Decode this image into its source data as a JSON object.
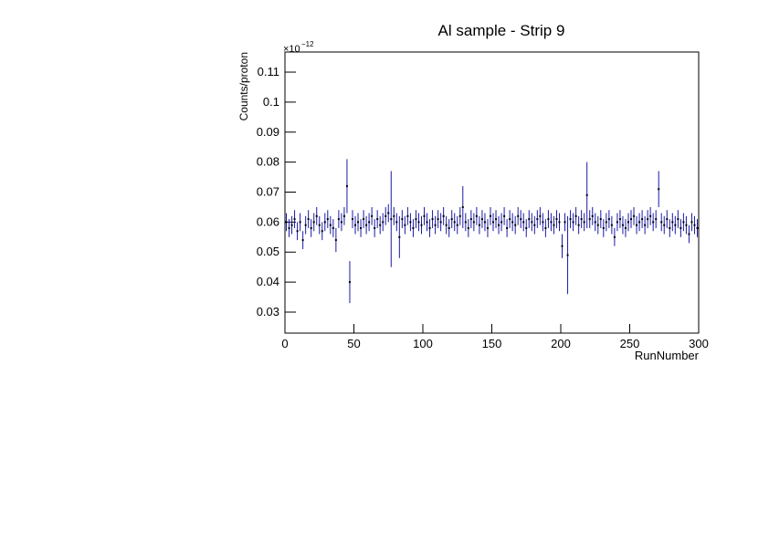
{
  "chart_data": {
    "type": "errorbar",
    "title": "Al sample - Strip 9",
    "x_label": "RunNumber",
    "y_label": "Counts/proton",
    "y_multiplier": "×10",
    "y_exponent": "−12",
    "xlim": [
      0,
      300
    ],
    "xticks": [
      0,
      50,
      100,
      150,
      200,
      250,
      300
    ],
    "ylim": [
      0.023,
      0.1167
    ],
    "yticks": [
      0.03,
      0.04,
      0.05,
      0.06,
      0.07,
      0.08,
      0.09,
      0.1,
      0.11
    ],
    "x": [
      1,
      3,
      5,
      7,
      9,
      11,
      13,
      15,
      17,
      19,
      21,
      23,
      25,
      27,
      29,
      31,
      33,
      35,
      37,
      39,
      41,
      43,
      45,
      47,
      49,
      51,
      53,
      55,
      57,
      59,
      61,
      63,
      65,
      67,
      69,
      71,
      73,
      75,
      77,
      79,
      81,
      83,
      85,
      87,
      89,
      91,
      93,
      95,
      97,
      99,
      101,
      103,
      105,
      107,
      109,
      111,
      113,
      115,
      117,
      119,
      121,
      123,
      125,
      127,
      129,
      131,
      133,
      135,
      137,
      139,
      141,
      143,
      145,
      147,
      149,
      151,
      153,
      155,
      157,
      159,
      161,
      163,
      165,
      167,
      169,
      171,
      173,
      175,
      177,
      179,
      181,
      183,
      185,
      187,
      189,
      191,
      193,
      195,
      197,
      199,
      201,
      203,
      205,
      207,
      209,
      211,
      213,
      215,
      217,
      219,
      221,
      223,
      225,
      227,
      229,
      231,
      233,
      235,
      237,
      239,
      241,
      243,
      245,
      247,
      249,
      251,
      253,
      255,
      257,
      259,
      261,
      263,
      265,
      267,
      269,
      271,
      273,
      275,
      277,
      279,
      281,
      283,
      285,
      287,
      289,
      291,
      293,
      295,
      297,
      299
    ],
    "series": [
      {
        "color": "#1a1aa6",
        "marker_color": "#000000",
        "values": [
          0.06,
          0.058,
          0.059,
          0.061,
          0.057,
          0.06,
          0.054,
          0.059,
          0.061,
          0.058,
          0.06,
          0.062,
          0.059,
          0.057,
          0.06,
          0.061,
          0.059,
          0.058,
          0.054,
          0.061,
          0.06,
          0.062,
          0.072,
          0.04,
          0.061,
          0.059,
          0.06,
          0.058,
          0.061,
          0.059,
          0.06,
          0.062,
          0.058,
          0.061,
          0.059,
          0.06,
          0.062,
          0.063,
          0.061,
          0.062,
          0.06,
          0.055,
          0.061,
          0.059,
          0.062,
          0.06,
          0.058,
          0.061,
          0.06,
          0.059,
          0.062,
          0.06,
          0.058,
          0.061,
          0.059,
          0.061,
          0.06,
          0.062,
          0.059,
          0.058,
          0.061,
          0.06,
          0.059,
          0.062,
          0.065,
          0.06,
          0.058,
          0.061,
          0.06,
          0.062,
          0.059,
          0.061,
          0.06,
          0.058,
          0.062,
          0.06,
          0.061,
          0.059,
          0.06,
          0.062,
          0.058,
          0.061,
          0.06,
          0.059,
          0.062,
          0.061,
          0.06,
          0.058,
          0.061,
          0.06,
          0.059,
          0.061,
          0.062,
          0.06,
          0.058,
          0.061,
          0.06,
          0.059,
          0.061,
          0.06,
          0.052,
          0.06,
          0.049,
          0.061,
          0.06,
          0.062,
          0.059,
          0.061,
          0.06,
          0.069,
          0.061,
          0.062,
          0.06,
          0.059,
          0.061,
          0.058,
          0.06,
          0.061,
          0.059,
          0.055,
          0.06,
          0.061,
          0.059,
          0.058,
          0.06,
          0.061,
          0.062,
          0.059,
          0.06,
          0.061,
          0.059,
          0.061,
          0.062,
          0.06,
          0.061,
          0.071,
          0.06,
          0.059,
          0.061,
          0.058,
          0.06,
          0.059,
          0.061,
          0.058,
          0.06,
          0.059,
          0.056,
          0.06,
          0.059,
          0.058
        ],
        "errors": [
          0.003,
          0.003,
          0.003,
          0.003,
          0.003,
          0.003,
          0.003,
          0.003,
          0.003,
          0.003,
          0.003,
          0.003,
          0.003,
          0.003,
          0.003,
          0.003,
          0.003,
          0.003,
          0.004,
          0.003,
          0.003,
          0.003,
          0.009,
          0.007,
          0.003,
          0.003,
          0.003,
          0.003,
          0.003,
          0.003,
          0.003,
          0.003,
          0.003,
          0.003,
          0.003,
          0.003,
          0.003,
          0.003,
          0.016,
          0.003,
          0.003,
          0.007,
          0.003,
          0.003,
          0.003,
          0.003,
          0.003,
          0.003,
          0.003,
          0.003,
          0.003,
          0.003,
          0.003,
          0.003,
          0.003,
          0.003,
          0.003,
          0.003,
          0.003,
          0.003,
          0.003,
          0.003,
          0.003,
          0.003,
          0.007,
          0.003,
          0.003,
          0.003,
          0.003,
          0.003,
          0.003,
          0.003,
          0.003,
          0.003,
          0.003,
          0.003,
          0.003,
          0.003,
          0.003,
          0.003,
          0.003,
          0.003,
          0.003,
          0.003,
          0.003,
          0.003,
          0.003,
          0.003,
          0.003,
          0.003,
          0.003,
          0.003,
          0.003,
          0.003,
          0.003,
          0.003,
          0.003,
          0.003,
          0.003,
          0.003,
          0.004,
          0.003,
          0.013,
          0.003,
          0.003,
          0.003,
          0.003,
          0.003,
          0.003,
          0.011,
          0.003,
          0.003,
          0.003,
          0.003,
          0.003,
          0.003,
          0.003,
          0.003,
          0.003,
          0.003,
          0.003,
          0.003,
          0.003,
          0.003,
          0.003,
          0.003,
          0.003,
          0.003,
          0.003,
          0.003,
          0.003,
          0.003,
          0.003,
          0.003,
          0.003,
          0.006,
          0.003,
          0.003,
          0.003,
          0.003,
          0.003,
          0.003,
          0.003,
          0.003,
          0.003,
          0.003,
          0.003,
          0.003,
          0.003,
          0.003
        ]
      }
    ]
  }
}
